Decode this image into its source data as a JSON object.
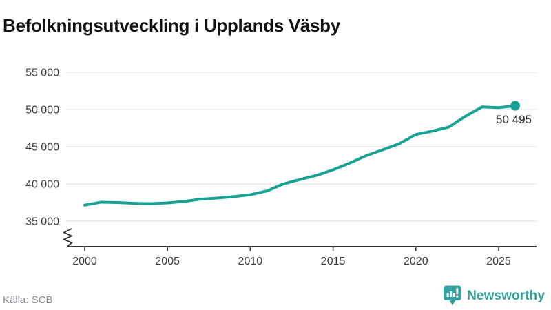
{
  "header": {
    "title": "Befolkningsutveckling i Upplands Väsby"
  },
  "footer": {
    "source": "Källa: SCB",
    "logo_text": "Newsworthy"
  },
  "chart_data": {
    "type": "line",
    "title": "Befolkningsutveckling i Upplands Väsby",
    "xlabel": "",
    "ylabel": "",
    "legend": "none",
    "grid": "horizontal",
    "axis_break": true,
    "x": [
      2000,
      2001,
      2002,
      2003,
      2004,
      2005,
      2006,
      2007,
      2008,
      2009,
      2010,
      2011,
      2012,
      2013,
      2014,
      2015,
      2016,
      2017,
      2018,
      2019,
      2020,
      2021,
      2022,
      2023,
      2024,
      2025,
      2026
    ],
    "series": [
      {
        "name": "Befolkning",
        "values": [
          37150,
          37550,
          37500,
          37400,
          37350,
          37450,
          37650,
          37950,
          38100,
          38300,
          38550,
          39050,
          40000,
          40600,
          41150,
          41900,
          42800,
          43800,
          44600,
          45400,
          46650,
          47100,
          47650,
          49100,
          50350,
          50250,
          50495
        ]
      }
    ],
    "end_label": "50 495",
    "ylim": [
      35000,
      55000
    ],
    "yticks": {
      "values": [
        35000,
        40000,
        45000,
        50000,
        55000
      ],
      "labels": [
        "35 000",
        "40 000",
        "45 000",
        "50 000",
        "55 000"
      ]
    },
    "xticks": {
      "values": [
        2000,
        2005,
        2010,
        2015,
        2020,
        2025
      ],
      "labels": [
        "2000",
        "2005",
        "2010",
        "2015",
        "2020",
        "2025"
      ]
    },
    "colors": {
      "line": "#18a294",
      "marker": "#18a294",
      "grid": "#e3e3e3",
      "axis": "#333333",
      "tick_text": "#3d3d3d",
      "end_label_text": "#222222"
    }
  }
}
